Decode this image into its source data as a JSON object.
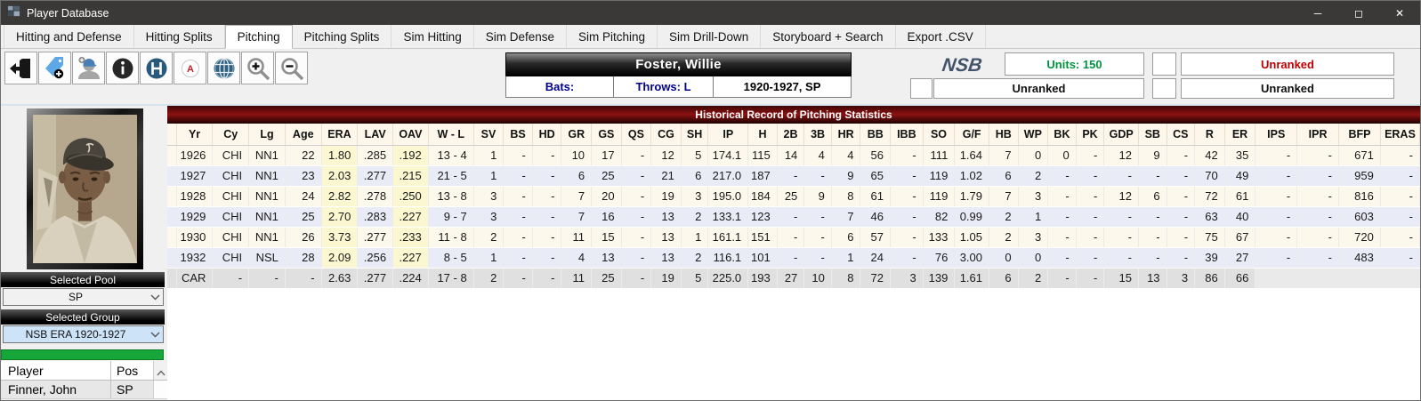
{
  "window": {
    "title": "Player Database",
    "controls": {
      "minimize": "─",
      "maximize": "◻",
      "close": "✕"
    }
  },
  "tabs": [
    {
      "label": "Hitting and Defense",
      "active": false
    },
    {
      "label": "Hitting Splits",
      "active": false
    },
    {
      "label": "Pitching",
      "active": true
    },
    {
      "label": "Pitching Splits",
      "active": false
    },
    {
      "label": "Sim Hitting",
      "active": false
    },
    {
      "label": "Sim Defense",
      "active": false
    },
    {
      "label": "Sim Pitching",
      "active": false
    },
    {
      "label": "Sim Drill-Down",
      "active": false
    },
    {
      "label": "Storyboard + Search",
      "active": false
    },
    {
      "label": "Export .CSV",
      "active": false
    }
  ],
  "toolbar": {
    "icons": [
      "exit-icon",
      "tag-add-icon",
      "player-add-icon",
      "info-icon",
      "letter-h-icon",
      "letter-a-icon",
      "globe-icon",
      "zoom-in-icon",
      "zoom-out-icon"
    ]
  },
  "player": {
    "name": "Foster, Willie",
    "bats": "Bats:",
    "throws": "Throws: L",
    "years_pos": "1920-1927, SP"
  },
  "rank_panel": {
    "logo": "NSB",
    "units": "Units: 150",
    "rank_right_top": "Unranked",
    "rank_mid": "Unranked",
    "rank_right_bottom": "Unranked"
  },
  "sidebar": {
    "selected_pool": {
      "label": "Selected Pool",
      "value": "SP"
    },
    "selected_group": {
      "label": "Selected Group",
      "value": "NSB ERA 1920-1927"
    },
    "player_list": {
      "headers": [
        "Player",
        "Pos"
      ],
      "rows": [
        {
          "player": "Finner, John",
          "pos": "SP"
        }
      ]
    }
  },
  "stats_table": {
    "title": "Historical Record of Pitching Statistics",
    "columns": [
      "Yr",
      "Cy",
      "Lg",
      "Age",
      "ERA",
      "LAV",
      "OAV",
      "W - L",
      "SV",
      "BS",
      "HD",
      "GR",
      "GS",
      "QS",
      "CG",
      "SH",
      "IP",
      "H",
      "2B",
      "3B",
      "HR",
      "BB",
      "IBB",
      "SO",
      "G/F",
      "HB",
      "WP",
      "BK",
      "PK",
      "GDP",
      "SB",
      "CS",
      "R",
      "ER",
      "IPS",
      "IPR",
      "BFP",
      "ERAS"
    ],
    "rows": [
      {
        "career": false,
        "cells": [
          "1926",
          "CHI",
          "NN1",
          "22",
          "1.80",
          ".285",
          ".192",
          "13 - 4",
          "1",
          "-",
          "-",
          "10",
          "17",
          "-",
          "12",
          "5",
          "174.1",
          "115",
          "14",
          "4",
          "4",
          "56",
          "-",
          "111",
          "1.64",
          "7",
          "0",
          "0",
          "-",
          "12",
          "9",
          "-",
          "42",
          "35",
          "-",
          "-",
          "671",
          "-"
        ]
      },
      {
        "career": false,
        "cells": [
          "1927",
          "CHI",
          "NN1",
          "23",
          "2.03",
          ".277",
          ".215",
          "21 - 5",
          "1",
          "-",
          "-",
          "6",
          "25",
          "-",
          "21",
          "6",
          "217.0",
          "187",
          "-",
          "-",
          "9",
          "65",
          "-",
          "119",
          "1.02",
          "6",
          "2",
          "-",
          "-",
          "-",
          "-",
          "-",
          "70",
          "49",
          "-",
          "-",
          "959",
          "-"
        ]
      },
      {
        "career": false,
        "cells": [
          "1928",
          "CHI",
          "NN1",
          "24",
          "2.82",
          ".278",
          ".250",
          "13 - 8",
          "3",
          "-",
          "-",
          "7",
          "20",
          "-",
          "19",
          "3",
          "195.0",
          "184",
          "25",
          "9",
          "8",
          "61",
          "-",
          "119",
          "1.79",
          "7",
          "3",
          "-",
          "-",
          "12",
          "6",
          "-",
          "72",
          "61",
          "-",
          "-",
          "816",
          "-"
        ]
      },
      {
        "career": false,
        "cells": [
          "1929",
          "CHI",
          "NN1",
          "25",
          "2.70",
          ".283",
          ".227",
          "9 - 7",
          "3",
          "-",
          "-",
          "7",
          "16",
          "-",
          "13",
          "2",
          "133.1",
          "123",
          "-",
          "-",
          "7",
          "46",
          "-",
          "82",
          "0.99",
          "2",
          "1",
          "-",
          "-",
          "-",
          "-",
          "-",
          "63",
          "40",
          "-",
          "-",
          "603",
          "-"
        ]
      },
      {
        "career": false,
        "cells": [
          "1930",
          "CHI",
          "NN1",
          "26",
          "3.73",
          ".277",
          ".233",
          "11 - 8",
          "2",
          "-",
          "-",
          "11",
          "15",
          "-",
          "13",
          "1",
          "161.1",
          "151",
          "-",
          "-",
          "6",
          "57",
          "-",
          "133",
          "1.05",
          "2",
          "3",
          "-",
          "-",
          "-",
          "-",
          "-",
          "75",
          "67",
          "-",
          "-",
          "720",
          "-"
        ]
      },
      {
        "career": false,
        "cells": [
          "1932",
          "CHI",
          "NSL",
          "28",
          "2.09",
          ".256",
          ".227",
          "8 - 5",
          "1",
          "-",
          "-",
          "4",
          "13",
          "-",
          "13",
          "2",
          "116.1",
          "101",
          "-",
          "-",
          "1",
          "24",
          "-",
          "76",
          "3.00",
          "0",
          "0",
          "-",
          "-",
          "-",
          "-",
          "-",
          "39",
          "27",
          "-",
          "-",
          "483",
          "-"
        ]
      },
      {
        "career": true,
        "cells": [
          "CAR",
          "-",
          "-",
          "-",
          "2.63",
          ".277",
          ".224",
          "17 - 8",
          "2",
          "-",
          "-",
          "11",
          "25",
          "-",
          "19",
          "5",
          "225.0",
          "193",
          "27",
          "10",
          "8",
          "72",
          "3",
          "139",
          "1.61",
          "6",
          "2",
          "-",
          "-",
          "15",
          "13",
          "3",
          "86",
          "66",
          "",
          "",
          "",
          ""
        ]
      }
    ]
  },
  "colors": {
    "navy_label": "#00008b",
    "units_green": "#009440",
    "unranked_red": "#c00000",
    "table_title_maroon": "#8c1111",
    "row_cream": "#fdf8ec",
    "row_lavender": "#e9ebf7",
    "row_career_gray": "#e0e0e0",
    "highlight_yellow": "#fbf7d0",
    "green_bar": "#17a63a",
    "group_select_blue": "#cde3f8"
  }
}
